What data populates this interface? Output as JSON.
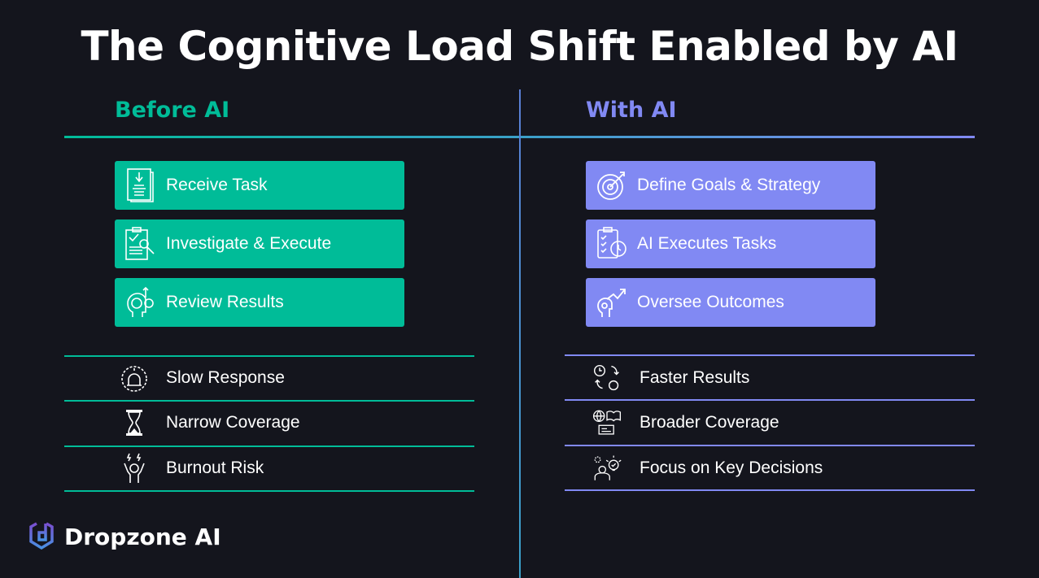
{
  "title": "The Cognitive Load Shift Enabled by AI",
  "colors": {
    "background": "#14151d",
    "before_accent": "#00bc98",
    "with_accent": "#8189f3"
  },
  "before": {
    "heading": "Before AI",
    "steps": [
      {
        "label": "Receive Task",
        "icon": "document-download-icon"
      },
      {
        "label": "Investigate & Execute",
        "icon": "clipboard-search-icon"
      },
      {
        "label": "Review Results",
        "icon": "brain-gear-icon"
      }
    ],
    "outcomes": [
      {
        "label": "Slow Response",
        "icon": "alarm-icon"
      },
      {
        "label": "Narrow Coverage",
        "icon": "hourglass-icon"
      },
      {
        "label": "Burnout Risk",
        "icon": "stressed-person-icon"
      }
    ]
  },
  "with": {
    "heading": "With AI",
    "steps": [
      {
        "label": "Define Goals & Strategy",
        "icon": "target-icon"
      },
      {
        "label": "AI Executes Tasks",
        "icon": "checklist-clock-icon"
      },
      {
        "label": "Oversee Outcomes",
        "icon": "growth-mind-icon"
      }
    ],
    "outcomes": [
      {
        "label": "Faster Results",
        "icon": "clock-cycle-icon"
      },
      {
        "label": "Broader Coverage",
        "icon": "globe-book-icon"
      },
      {
        "label": "Focus on Key Decisions",
        "icon": "person-idea-icon"
      }
    ]
  },
  "logo": {
    "text": "Dropzone AI"
  }
}
